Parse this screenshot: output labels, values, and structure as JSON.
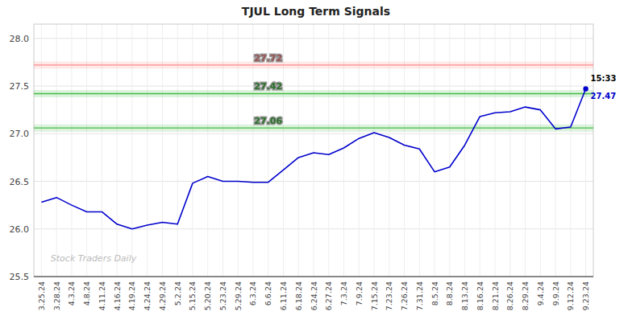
{
  "chart_data": {
    "type": "line",
    "title": "TJUL Long Term Signals",
    "watermark": "Stock Traders Daily",
    "categories": [
      "3.25.24",
      "3.28.24",
      "4.3.24",
      "4.8.24",
      "4.11.24",
      "4.16.24",
      "4.19.24",
      "4.24.24",
      "4.29.24",
      "5.2.24",
      "5.15.24",
      "5.20.24",
      "5.23.24",
      "5.29.24",
      "6.3.24",
      "6.6.24",
      "6.11.24",
      "6.18.24",
      "6.24.24",
      "6.27.24",
      "7.3.24",
      "7.9.24",
      "7.15.24",
      "7.23.24",
      "7.26.24",
      "7.31.24",
      "8.5.24",
      "8.8.24",
      "8.13.24",
      "8.16.24",
      "8.21.24",
      "8.26.24",
      "8.29.24",
      "9.4.24",
      "9.9.24",
      "9.12.24",
      "9.23.24"
    ],
    "values": [
      26.28,
      26.33,
      26.25,
      26.18,
      26.18,
      26.05,
      26.0,
      26.04,
      26.07,
      26.05,
      26.48,
      26.55,
      26.5,
      26.5,
      26.49,
      26.49,
      26.62,
      26.75,
      26.8,
      26.78,
      26.85,
      26.95,
      27.01,
      26.96,
      26.88,
      26.84,
      26.6,
      26.65,
      26.88,
      27.18,
      27.22,
      27.23,
      27.28,
      27.25,
      27.05,
      27.07,
      27.47
    ],
    "color": "#0000cc",
    "hlines": [
      {
        "value": 27.72,
        "label": "27.72",
        "color": "#ff8888"
      },
      {
        "value": 27.42,
        "label": "27.42",
        "color": "#44bb44"
      },
      {
        "value": 27.06,
        "label": "27.06",
        "color": "#44bb44"
      }
    ],
    "annotations": [
      {
        "text": "15:33"
      },
      {
        "text": "27.47",
        "value": 27.47
      }
    ],
    "ylim": [
      25.5,
      28.15
    ],
    "yticks": [
      25.5,
      {
        "value": 26,
        "label": "26.0"
      },
      26.5,
      {
        "value": 27,
        "label": "27.0"
      },
      27.5,
      {
        "value": 28,
        "label": "28.0"
      }
    ],
    "grid": true
  }
}
